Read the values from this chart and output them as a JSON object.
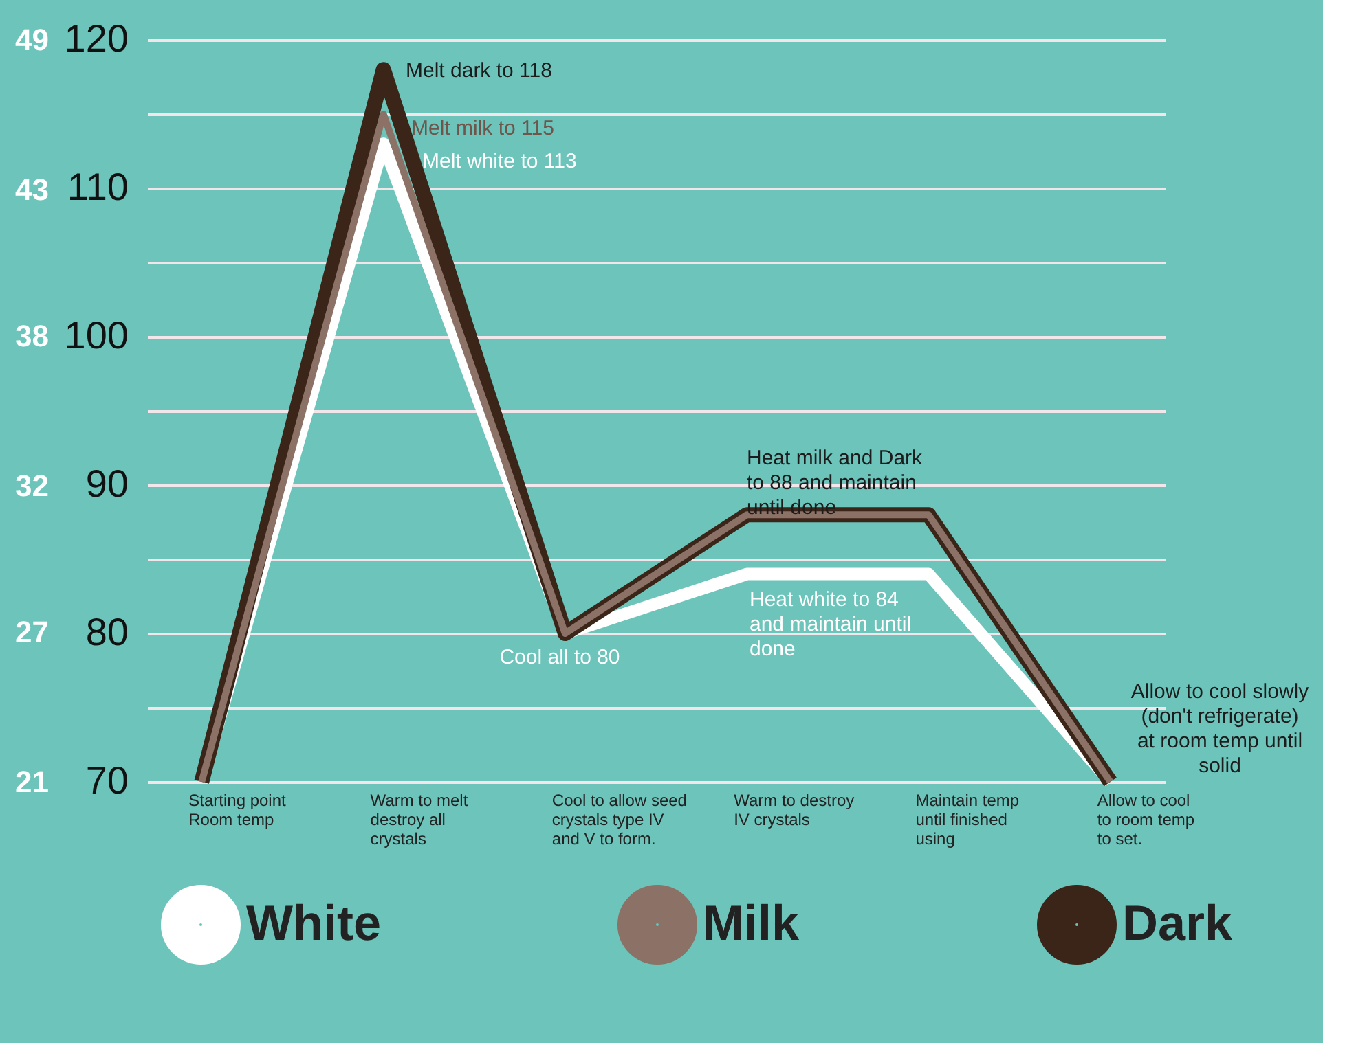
{
  "chart_data": {
    "type": "line",
    "categories": [
      "Starting point Room temp",
      "Warm to melt destroy all crystals",
      "Cool to allow seed crystals type IV and V to form.",
      "Warm to destroy IV crystals",
      "Maintain temp until finished using",
      "Allow to cool to room temp to set."
    ],
    "series": [
      {
        "name": "White",
        "color": "#ffffff",
        "values": [
          70,
          113,
          80,
          84,
          84,
          70
        ]
      },
      {
        "name": "Milk",
        "color": "#8b7166",
        "values": [
          70,
          115,
          80,
          88,
          88,
          70
        ]
      },
      {
        "name": "Dark",
        "color": "#3b2418",
        "values": [
          70,
          118,
          80,
          88,
          88,
          70
        ]
      }
    ],
    "ylim": [
      70,
      120
    ],
    "yticks": [
      70,
      {
        "value": 75,
        "label": null
      },
      80,
      {
        "value": 85,
        "label": null
      },
      90,
      {
        "value": 95,
        "label": null
      },
      100,
      {
        "value": 105,
        "label": null
      },
      110,
      {
        "value": 115,
        "label": null
      },
      120
    ],
    "y2lim": [
      21.1,
      48.9
    ],
    "y2ticks": [
      {
        "value": 21.1,
        "label": "21"
      },
      {
        "value": 26.7,
        "label": "27"
      },
      {
        "value": 32.2,
        "label": "32"
      },
      {
        "value": 37.8,
        "label": "38"
      },
      {
        "value": 43.3,
        "label": "43"
      },
      {
        "value": 48.9,
        "label": "49"
      }
    ],
    "grid": "y",
    "legend": "bottom",
    "line_style": "solid",
    "marker": "none",
    "annotations": [
      "Melt dark to 118",
      "Melt milk to 115",
      "Melt white to 113",
      "Heat milk and Dark to 88 and maintain until done",
      "Heat white to 84 and maintain until done",
      "Cool all to 80",
      "Allow to cool slowly (don't refrigerate) at room temp until solid"
    ]
  }
}
